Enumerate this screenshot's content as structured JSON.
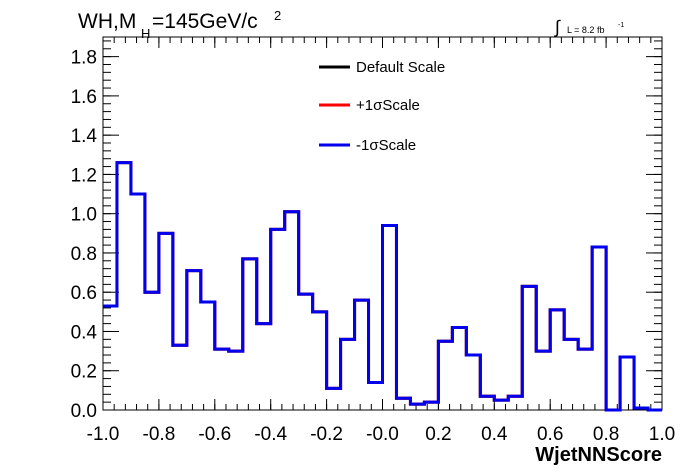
{
  "chart_data": {
    "type": "step",
    "title": {
      "prefix": "WH,M",
      "subscript": "H",
      "middle": "=145GeV/c",
      "superscript": "2"
    },
    "luminosity": {
      "integral_symbol": "∫",
      "text": "L = 8.2 fb",
      "superscript": "-1"
    },
    "xlabel": "WjetNNScore",
    "ylabel": "",
    "xlim": [
      -1.0,
      1.0
    ],
    "ylim": [
      0.0,
      1.9
    ],
    "xticks": [
      {
        "value": -1.0,
        "label": "-1.0"
      },
      {
        "value": -0.8,
        "label": "-0.8"
      },
      {
        "value": -0.6,
        "label": "-0.6"
      },
      {
        "value": -0.4,
        "label": "-0.4"
      },
      {
        "value": -0.2,
        "label": "-0.2"
      },
      {
        "value": 0.0,
        "label": "-0.0"
      },
      {
        "value": 0.2,
        "label": "0.2"
      },
      {
        "value": 0.4,
        "label": "0.4"
      },
      {
        "value": 0.6,
        "label": "0.6"
      },
      {
        "value": 0.8,
        "label": "0.8"
      },
      {
        "value": 1.0,
        "label": "1.0"
      }
    ],
    "yticks": [
      {
        "value": 0.0,
        "label": "0.0"
      },
      {
        "value": 0.2,
        "label": "0.2"
      },
      {
        "value": 0.4,
        "label": "0.4"
      },
      {
        "value": 0.6,
        "label": "0.6"
      },
      {
        "value": 0.8,
        "label": "0.8"
      },
      {
        "value": 1.0,
        "label": "1.0"
      },
      {
        "value": 1.2,
        "label": "1.2"
      },
      {
        "value": 1.4,
        "label": "1.4"
      },
      {
        "value": 1.6,
        "label": "1.6"
      },
      {
        "value": 1.8,
        "label": "1.8"
      }
    ],
    "bin_edges": [
      -1.0,
      -0.95,
      -0.9,
      -0.85,
      -0.8,
      -0.75,
      -0.7,
      -0.65,
      -0.6,
      -0.55,
      -0.5,
      -0.45,
      -0.4,
      -0.35,
      -0.3,
      -0.25,
      -0.2,
      -0.15,
      -0.1,
      -0.05,
      0.0,
      0.05,
      0.1,
      0.15,
      0.2,
      0.25,
      0.3,
      0.35,
      0.4,
      0.45,
      0.5,
      0.55,
      0.6,
      0.65,
      0.7,
      0.75,
      0.8,
      0.85,
      0.9,
      0.95,
      1.0
    ],
    "series": [
      {
        "name": "Default Scale",
        "color": "#000000",
        "values": [
          0.53,
          1.26,
          1.1,
          0.6,
          0.9,
          0.33,
          0.71,
          0.55,
          0.31,
          0.3,
          0.77,
          0.44,
          0.92,
          1.01,
          0.59,
          0.5,
          0.11,
          0.36,
          0.56,
          0.14,
          0.94,
          0.06,
          0.03,
          0.04,
          0.35,
          0.42,
          0.28,
          0.07,
          0.05,
          0.07,
          0.63,
          0.3,
          0.51,
          0.36,
          0.31,
          0.83,
          0.0,
          0.27,
          0.01,
          0.0
        ]
      },
      {
        "name": "+1σScale",
        "color": "#ff0000",
        "values": [
          0.53,
          1.26,
          1.1,
          0.6,
          0.9,
          0.33,
          0.71,
          0.55,
          0.31,
          0.3,
          0.77,
          0.44,
          0.92,
          1.01,
          0.59,
          0.5,
          0.11,
          0.36,
          0.56,
          0.14,
          0.94,
          0.06,
          0.03,
          0.04,
          0.35,
          0.42,
          0.28,
          0.07,
          0.05,
          0.07,
          0.63,
          0.3,
          0.51,
          0.36,
          0.31,
          0.83,
          0.0,
          0.27,
          0.01,
          0.0
        ]
      },
      {
        "name": "-1σScale",
        "color": "#0000ee",
        "values": [
          0.53,
          1.26,
          1.1,
          0.6,
          0.9,
          0.33,
          0.71,
          0.55,
          0.31,
          0.3,
          0.77,
          0.44,
          0.92,
          1.01,
          0.59,
          0.5,
          0.11,
          0.36,
          0.56,
          0.14,
          0.94,
          0.06,
          0.03,
          0.04,
          0.35,
          0.42,
          0.28,
          0.07,
          0.05,
          0.07,
          0.63,
          0.3,
          0.51,
          0.36,
          0.31,
          0.83,
          0.0,
          0.27,
          0.01,
          0.0
        ]
      }
    ],
    "legend": {
      "placement": "top-center",
      "entries": [
        "Default Scale",
        "+1σScale",
        "-1σScale"
      ]
    },
    "grid": false
  }
}
